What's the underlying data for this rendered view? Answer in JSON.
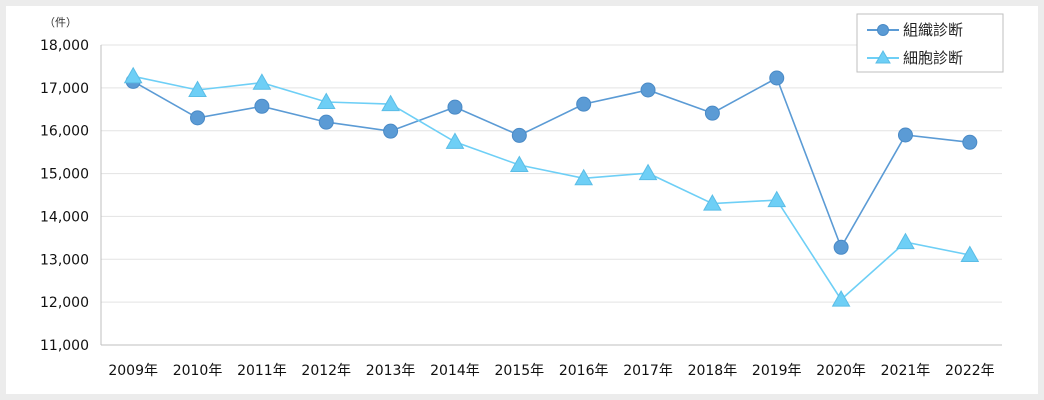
{
  "chart_data": {
    "type": "line",
    "unit_label": "（件）",
    "categories": [
      "2009年",
      "2010年",
      "2011年",
      "2012年",
      "2013年",
      "2014年",
      "2015年",
      "2016年",
      "2017年",
      "2018年",
      "2019年",
      "2020年",
      "2021年",
      "2022年"
    ],
    "ylim": [
      11000,
      18000
    ],
    "yticks": [
      "11,000",
      "12,000",
      "13,000",
      "14,000",
      "15,000",
      "16,000",
      "17,000",
      "18,000"
    ],
    "ytick_values": [
      11000,
      12000,
      13000,
      14000,
      15000,
      16000,
      17000,
      18000
    ],
    "grid": true,
    "legend_position": "top-right",
    "series": [
      {
        "name": "組織診断",
        "marker": "circle",
        "color": "#5b9bd5",
        "values": [
          17150,
          16300,
          16570,
          16200,
          15990,
          16550,
          15890,
          16620,
          16950,
          16410,
          17230,
          13280,
          15900,
          15730
        ]
      },
      {
        "name": "細胞診断",
        "marker": "triangle",
        "color": "#6ecff6",
        "values": [
          17270,
          16950,
          17120,
          16670,
          16620,
          15740,
          15200,
          14890,
          15010,
          14300,
          14380,
          12060,
          13400,
          13100
        ]
      }
    ]
  }
}
